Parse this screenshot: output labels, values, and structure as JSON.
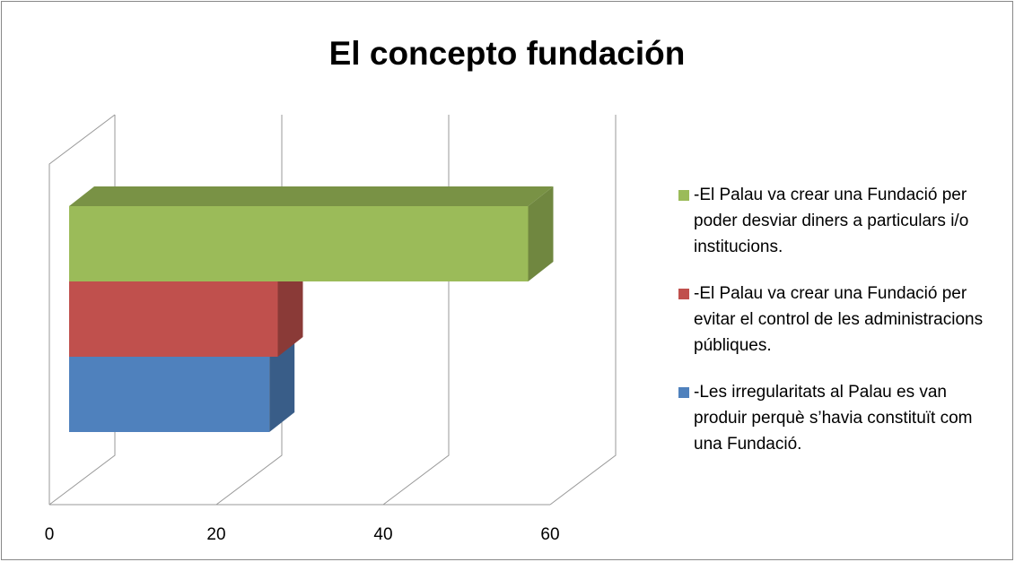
{
  "chart_data": {
    "type": "bar3d",
    "title": "El concepto fundación",
    "series": [
      {
        "name": "-El Palau va crear una Fundació per poder desviar diners a particulars i/o institucions.",
        "color": "#9bbb59",
        "values": [
          55
        ]
      },
      {
        "name": "-El Palau va crear una Fundació per evitar el control de les administracions públiques.",
        "color": "#c0504d",
        "values": [
          25
        ]
      },
      {
        "name": "-Les irregularitats al Palau es van produir perquè s’havia constituït com una Fundació.",
        "color": "#4f81bd",
        "values": [
          24
        ]
      }
    ],
    "xlim": [
      0,
      60
    ],
    "xticks": [
      0,
      20,
      40,
      60
    ],
    "grid": true,
    "legend": "right"
  }
}
